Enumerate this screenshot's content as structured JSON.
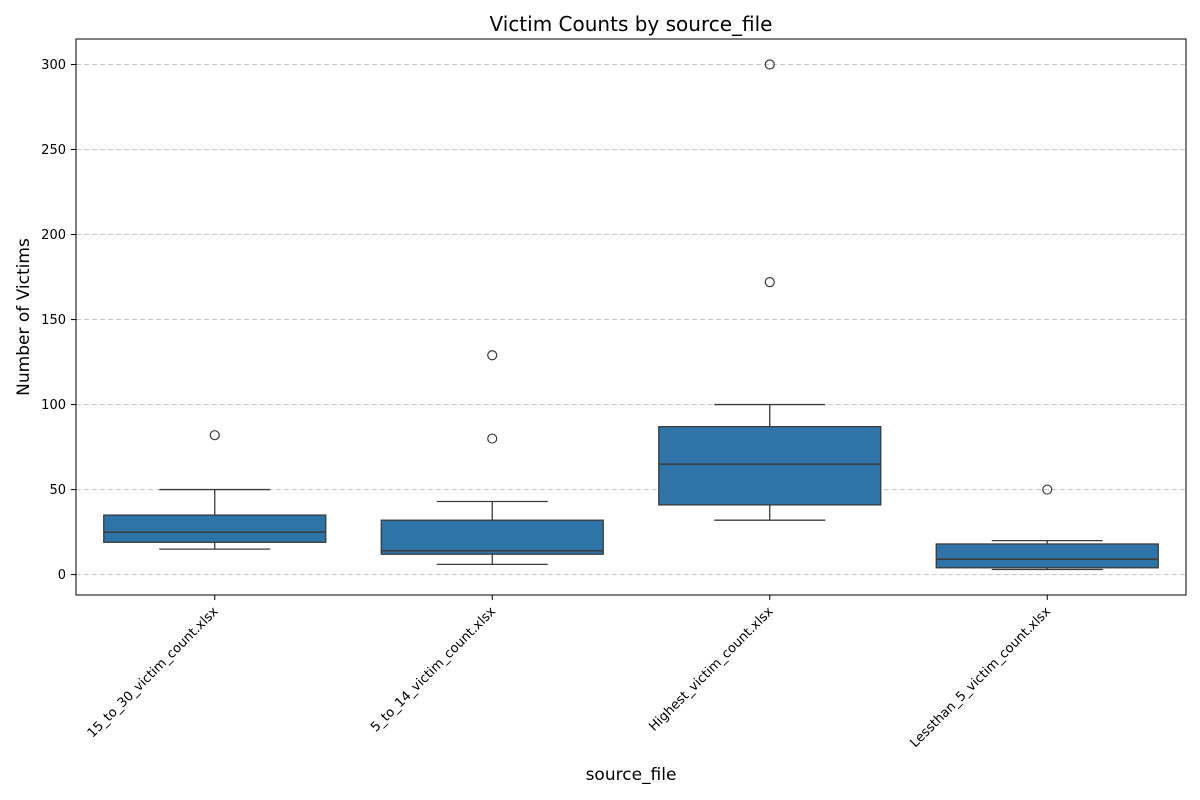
{
  "chart_data": {
    "type": "box",
    "title": "Victim Counts by source_file",
    "xlabel": "source_file",
    "ylabel": "Number of Victims",
    "ylim": [
      -12,
      315
    ],
    "yticks": [
      0,
      50,
      100,
      150,
      200,
      250,
      300
    ],
    "grid": "y-dashed",
    "box_color": "#2e74a8",
    "line_color": "#3b3b3b",
    "categories": [
      "15_to_30_victim_count.xlsx",
      "5_to_14_victim_count.xlsx",
      "Highest_victim_count.xlsx",
      "Lessthan_5_victim_count.xlsx"
    ],
    "boxes": [
      {
        "whisker_low": 15,
        "q1": 19,
        "median": 25,
        "q3": 35,
        "whisker_high": 50,
        "outliers": [
          82
        ]
      },
      {
        "whisker_low": 6,
        "q1": 12,
        "median": 14,
        "q3": 32,
        "whisker_high": 43,
        "outliers": [
          80,
          129
        ]
      },
      {
        "whisker_low": 32,
        "q1": 41,
        "median": 65,
        "q3": 87,
        "whisker_high": 100,
        "outliers": [
          172,
          300
        ]
      },
      {
        "whisker_low": 3,
        "q1": 4,
        "median": 9,
        "q3": 18,
        "whisker_high": 20,
        "outliers": [
          50
        ]
      }
    ]
  }
}
